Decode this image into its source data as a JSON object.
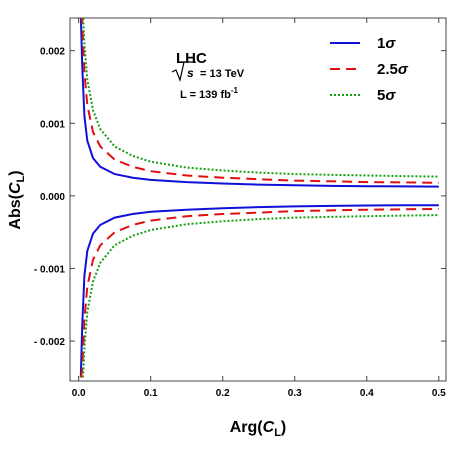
{
  "chart_data": {
    "type": "line",
    "xlabel_main": "Arg(",
    "xlabel_sym": "C",
    "xlabel_sub": "L",
    "xlabel_end": ")",
    "ylabel_main": "Abs(",
    "ylabel_sym": "C",
    "ylabel_sub": "L",
    "ylabel_end": ")",
    "xlim": [
      -0.012,
      0.51
    ],
    "ylim": [
      -0.00255,
      0.00245
    ],
    "x_ticks": [
      0.0,
      0.1,
      0.2,
      0.3,
      0.4,
      0.5
    ],
    "x_tick_labels": [
      "0.0",
      "0.1",
      "0.2",
      "0.3",
      "0.4",
      "0.5"
    ],
    "y_ticks": [
      -0.002,
      -0.001,
      0.0,
      0.001,
      0.002
    ],
    "y_tick_labels": [
      "- 0.002",
      "- 0.001",
      "0.000",
      "0.001",
      "0.002"
    ],
    "annotation": {
      "title": "LHC",
      "energy_symbol": "s",
      "energy_value": "= 13 TeV",
      "lumi_prefix": "L = 139 fb",
      "lumi_exp": "-1"
    },
    "legend_position": "top-right",
    "series": [
      {
        "name_num": "1",
        "name_sym": "σ",
        "color": "#1010d8",
        "style": "solid",
        "x": [
          0.003,
          0.005,
          0.008,
          0.012,
          0.02,
          0.03,
          0.05,
          0.075,
          0.1,
          0.15,
          0.2,
          0.25,
          0.3,
          0.35,
          0.4,
          0.45,
          0.5
        ],
        "y_upper": [
          0.0025,
          0.0018,
          0.0011,
          0.00076,
          0.00052,
          0.0004,
          0.0003,
          0.00025,
          0.00022,
          0.00019,
          0.00017,
          0.000155,
          0.000145,
          0.000138,
          0.000133,
          0.00013,
          0.000128
        ],
        "y_lower": [
          -0.0025,
          -0.0018,
          -0.0011,
          -0.00076,
          -0.00052,
          -0.0004,
          -0.0003,
          -0.00025,
          -0.00022,
          -0.00019,
          -0.00017,
          -0.000155,
          -0.000145,
          -0.000138,
          -0.000133,
          -0.00013,
          -0.000128
        ]
      },
      {
        "name_num": "2.5",
        "name_sym": "σ",
        "color": "#e01010",
        "style": "dashed",
        "x": [
          0.003,
          0.005,
          0.008,
          0.012,
          0.02,
          0.03,
          0.05,
          0.075,
          0.1,
          0.15,
          0.2,
          0.25,
          0.3,
          0.35,
          0.4,
          0.45,
          0.5
        ],
        "y_upper": [
          0.0025,
          0.0024,
          0.0017,
          0.00125,
          0.00088,
          0.00068,
          0.0005,
          0.0004,
          0.00034,
          0.00028,
          0.00025,
          0.00023,
          0.00021,
          0.0002,
          0.00019,
          0.000185,
          0.00018
        ],
        "y_lower": [
          -0.0025,
          -0.0024,
          -0.0017,
          -0.00125,
          -0.00088,
          -0.00068,
          -0.0005,
          -0.0004,
          -0.00034,
          -0.00028,
          -0.00025,
          -0.00023,
          -0.00021,
          -0.0002,
          -0.00019,
          -0.000185,
          -0.00018
        ]
      },
      {
        "name_num": "5",
        "name_sym": "σ",
        "color": "#10a010",
        "style": "dotted",
        "x": [
          0.006,
          0.008,
          0.012,
          0.02,
          0.03,
          0.05,
          0.075,
          0.1,
          0.15,
          0.2,
          0.25,
          0.3,
          0.35,
          0.4,
          0.45,
          0.5
        ],
        "y_upper": [
          0.0025,
          0.0021,
          0.0016,
          0.00118,
          0.00092,
          0.00068,
          0.00055,
          0.00047,
          0.00039,
          0.00035,
          0.00032,
          0.0003,
          0.00029,
          0.00028,
          0.000272,
          0.000265
        ],
        "y_lower": [
          -0.0025,
          -0.0021,
          -0.0016,
          -0.00118,
          -0.00092,
          -0.00068,
          -0.00055,
          -0.00047,
          -0.00039,
          -0.00035,
          -0.00032,
          -0.0003,
          -0.00029,
          -0.00028,
          -0.000272,
          -0.000265
        ]
      }
    ]
  }
}
